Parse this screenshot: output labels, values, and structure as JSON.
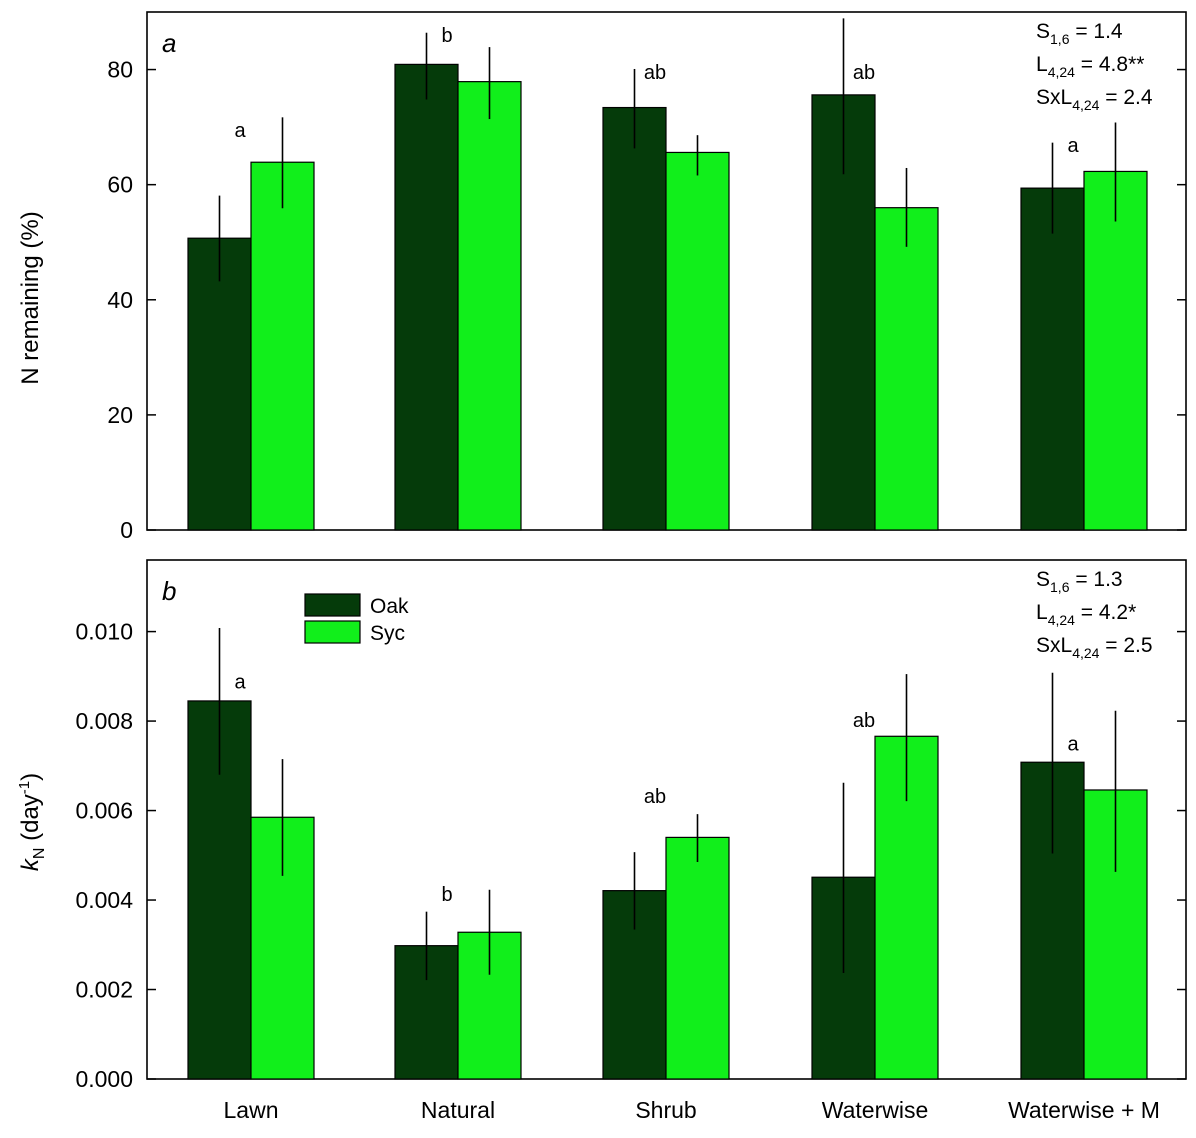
{
  "colors": {
    "oak": "#053b0a",
    "syc": "#11ef1b",
    "axis": "#000000"
  },
  "legend": [
    {
      "key": "oak",
      "label": "Oak"
    },
    {
      "key": "syc",
      "label": "Syc"
    }
  ],
  "chart_data": [
    {
      "type": "bar",
      "panel_label": "a",
      "ylabel": "N remaining (%)",
      "ylim": [
        0,
        90
      ],
      "yticks": [
        0,
        20,
        40,
        60,
        80
      ],
      "ytick_labels": [
        "0",
        "20",
        "40",
        "60",
        "80"
      ],
      "categories": [
        "Lawn",
        "Natural",
        "Shrub",
        "Waterwise",
        "Waterwise + M"
      ],
      "series": [
        {
          "name": "Oak",
          "key": "oak",
          "values": [
            50.7,
            80.9,
            73.4,
            75.6,
            59.4
          ],
          "err_low": [
            43.2,
            74.8,
            66.3,
            61.8,
            51.5
          ],
          "err_high": [
            58.1,
            86.4,
            80.1,
            88.9,
            67.3
          ]
        },
        {
          "name": "Syc",
          "key": "syc",
          "values": [
            63.9,
            77.9,
            65.6,
            56.0,
            62.3
          ],
          "err_low": [
            55.9,
            71.4,
            61.6,
            49.2,
            53.6
          ],
          "err_high": [
            71.7,
            83.9,
            68.6,
            62.9,
            70.8
          ]
        }
      ],
      "sig_letters": [
        {
          "category": "Lawn",
          "text": "a",
          "y": 68.3
        },
        {
          "category": "Natural",
          "text": "b",
          "y": 84.8
        },
        {
          "category": "Shrub",
          "text": "ab",
          "y": 78.4
        },
        {
          "category": "Waterwise",
          "text": "ab",
          "y": 78.4
        },
        {
          "category": "Waterwise + M",
          "text": "a",
          "y": 65.7
        }
      ],
      "stats": [
        {
          "base": "S",
          "sub": "1,6",
          "rest": " = 1.4"
        },
        {
          "base": "L",
          "sub": "4,24",
          "rest": " = 4.8**"
        },
        {
          "base": "SxL",
          "sub": "4,24",
          "rest": " = 2.4"
        }
      ]
    },
    {
      "type": "bar",
      "panel_label": "b",
      "ylabel": {
        "var": "k",
        "var_sub": "N",
        "text": " (day",
        "sup": "-1",
        "close": ")"
      },
      "ylim": [
        0,
        0.0116
      ],
      "yticks": [
        0,
        0.002,
        0.004,
        0.006,
        0.008,
        0.01
      ],
      "ytick_labels": [
        "0.000",
        "0.002",
        "0.004",
        "0.006",
        "0.008",
        "0.010"
      ],
      "categories": [
        "Lawn",
        "Natural",
        "Shrub",
        "Waterwise",
        "Waterwise + M"
      ],
      "series": [
        {
          "name": "Oak",
          "key": "oak",
          "values": [
            0.00845,
            0.00298,
            0.00421,
            0.00451,
            0.00708
          ],
          "err_low": [
            0.0068,
            0.00221,
            0.00334,
            0.00237,
            0.00504
          ],
          "err_high": [
            0.01008,
            0.00374,
            0.00507,
            0.00662,
            0.00908
          ]
        },
        {
          "name": "Syc",
          "key": "syc",
          "values": [
            0.00585,
            0.00328,
            0.0054,
            0.00766,
            0.00646
          ],
          "err_low": [
            0.00454,
            0.00233,
            0.00485,
            0.00621,
            0.00463
          ],
          "err_high": [
            0.00715,
            0.00423,
            0.00592,
            0.00905,
            0.00823
          ]
        }
      ],
      "sig_letters": [
        {
          "category": "Lawn",
          "text": "a",
          "y": 0.00873
        },
        {
          "category": "Natural",
          "text": "b",
          "y": 0.00398
        },
        {
          "category": "Shrub",
          "text": "ab",
          "y": 0.00617
        },
        {
          "category": "Waterwise",
          "text": "ab",
          "y": 0.00787
        },
        {
          "category": "Waterwise + M",
          "text": "a",
          "y": 0.00734
        }
      ],
      "stats": [
        {
          "base": "S",
          "sub": "1,6",
          "rest": " = 1.3"
        },
        {
          "base": "L",
          "sub": "4,24",
          "rest": " = 4.2*"
        },
        {
          "base": "SxL",
          "sub": "4,24",
          "rest": " = 2.5"
        }
      ]
    }
  ]
}
